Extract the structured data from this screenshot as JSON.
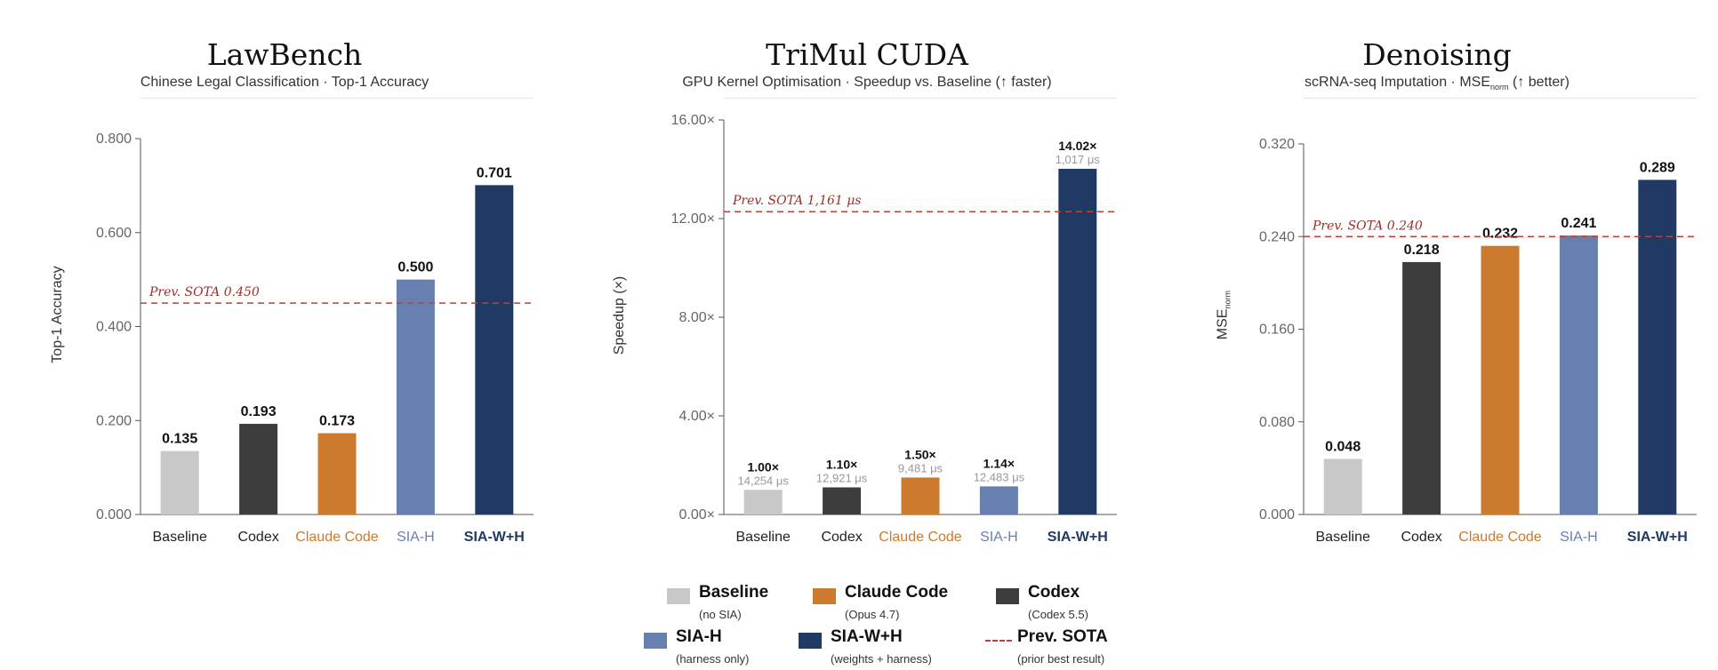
{
  "legend": [
    {
      "name": "Baseline",
      "desc": "(no SIA)",
      "color": "#c8c8c8"
    },
    {
      "name": "Claude Code",
      "desc": "(Opus 4.7)",
      "color": "#cc7a2e"
    },
    {
      "name": "Codex",
      "desc": "(Codex 5.5)",
      "color": "#3d3d3d"
    },
    {
      "name": "SIA-H",
      "desc": "(harness only)",
      "color": "#6880b0"
    },
    {
      "name": "SIA-W+H",
      "desc": "(weights + harness)",
      "color": "#213a64"
    },
    {
      "name": "Prev. SOTA",
      "desc": "(prior best result)",
      "color": "#b5453a"
    }
  ],
  "chart_data": [
    {
      "type": "bar",
      "title": "LawBench",
      "subtitle": "Chinese Legal Classification · Top-1 Accuracy",
      "ylabel": "Top-1 Accuracy",
      "xlabel": "",
      "categories": [
        "Baseline",
        "Codex",
        "Claude Code",
        "SIA-H",
        "SIA-W+H"
      ],
      "category_colors": [
        "#222222",
        "#222222",
        "#cc7a2e",
        "#6880b0",
        "#213a64"
      ],
      "bar_colors": [
        "#c8c8c8",
        "#3d3d3d",
        "#cc7a2e",
        "#6880b0",
        "#213a64"
      ],
      "values": [
        0.135,
        0.193,
        0.173,
        0.5,
        0.701
      ],
      "value_labels": [
        "0.135",
        "0.193",
        "0.173",
        "0.500",
        "0.701"
      ],
      "sub_labels": [],
      "ylim": [
        0,
        0.8
      ],
      "yticks": [
        0,
        0.2,
        0.4,
        0.6,
        0.8
      ],
      "ytick_labels": [
        "0.000",
        "0.200",
        "0.400",
        "0.600",
        "0.800"
      ],
      "reference_line": {
        "value": 0.45,
        "label": "Prev. SOTA  0.450"
      },
      "grid": false
    },
    {
      "type": "bar",
      "title": "TriMul CUDA",
      "subtitle": "GPU Kernel Optimisation · Speedup vs. Baseline (↑ faster)",
      "ylabel": "Speedup (×)",
      "xlabel": "",
      "categories": [
        "Baseline",
        "Codex",
        "Claude Code",
        "SIA-H",
        "SIA-W+H"
      ],
      "category_colors": [
        "#222222",
        "#222222",
        "#cc7a2e",
        "#6880b0",
        "#213a64"
      ],
      "bar_colors": [
        "#c8c8c8",
        "#3d3d3d",
        "#cc7a2e",
        "#6880b0",
        "#213a64"
      ],
      "values": [
        1.0,
        1.1,
        1.5,
        1.14,
        14.02
      ],
      "value_labels": [
        "1.00×",
        "1.10×",
        "1.50×",
        "1.14×",
        "14.02×"
      ],
      "sub_labels": [
        "14,254 μs",
        "12,921 μs",
        "9,481 μs",
        "12,483 μs",
        "1,017 μs"
      ],
      "ylim": [
        0,
        16
      ],
      "yticks": [
        0,
        4,
        8,
        12,
        16
      ],
      "ytick_labels": [
        "0.00×",
        "4.00×",
        "8.00×",
        "12.00×",
        "16.00×"
      ],
      "reference_line": {
        "value": 12.28,
        "label": "Prev. SOTA  1,161 μs"
      },
      "grid": false
    },
    {
      "type": "bar",
      "title": "Denoising",
      "subtitle": "scRNA-seq Imputation · MSE",
      "subtitle_sub": "norm",
      "subtitle_after": " (↑ better)",
      "ylabel": "MSE",
      "ylabel_sub": "norm",
      "xlabel": "",
      "categories": [
        "Baseline",
        "Codex",
        "Claude Code",
        "SIA-H",
        "SIA-W+H"
      ],
      "category_colors": [
        "#222222",
        "#222222",
        "#cc7a2e",
        "#6880b0",
        "#213a64"
      ],
      "bar_colors": [
        "#c8c8c8",
        "#3d3d3d",
        "#cc7a2e",
        "#6880b0",
        "#213a64"
      ],
      "values": [
        0.048,
        0.218,
        0.232,
        0.241,
        0.289
      ],
      "value_labels": [
        "0.048",
        "0.218",
        "0.232",
        "0.241",
        "0.289"
      ],
      "sub_labels": [],
      "ylim": [
        0,
        0.32
      ],
      "yticks": [
        0,
        0.08,
        0.16,
        0.24,
        0.32
      ],
      "ytick_labels": [
        "0.000",
        "0.080",
        "0.160",
        "0.240",
        "0.320"
      ],
      "reference_line": {
        "value": 0.24,
        "label": "Prev. SOTA  0.240"
      },
      "grid": false
    }
  ]
}
